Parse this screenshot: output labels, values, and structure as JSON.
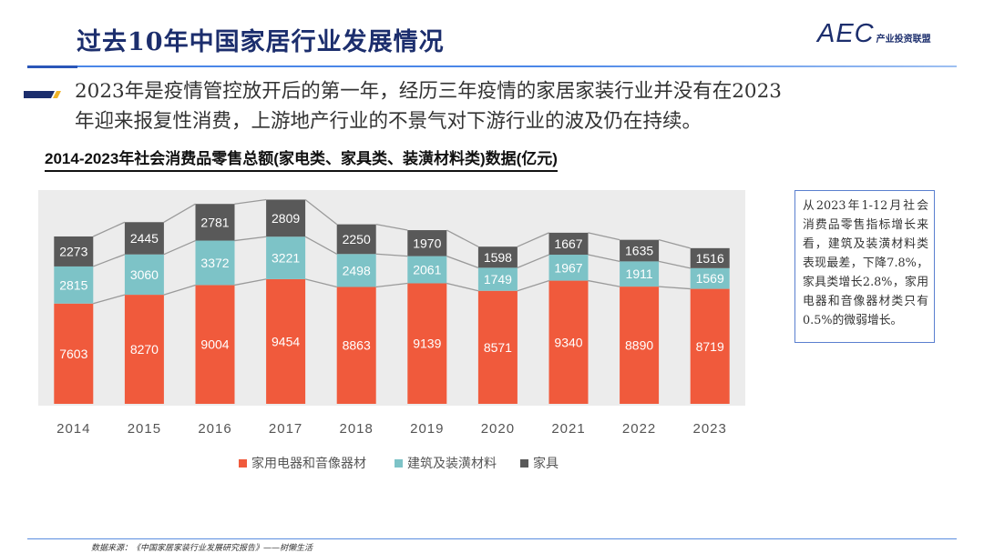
{
  "header": {
    "title": "过去10年中国家居行业发展情况",
    "logo_mark": "AEC",
    "logo_text": "产业投资联盟"
  },
  "intro": {
    "line1": "2023年是疫情管控放开后的第一年，经历三年疫情的家居家装行业并没有在2023",
    "line2": "年迎来报复性消费，上游地产行业的不景气对下游行业的波及仍在持续。"
  },
  "note": "从2023年1-12月社会消费品零售指标增长来看，建筑及装潢材料类表现最差，下降7.8%，家具类增长2.8%，家用电器和音像器材类只有0.5%的微弱增长。",
  "footer": "数据来源：《中国家居家装行业发展研究报告》——树懒生活",
  "colors": {
    "appliance": "#f05a3c",
    "building": "#7dc3c7",
    "furniture": "#595959",
    "title": "#1c2e6d",
    "accent": "#4a86e8"
  },
  "chart_data": {
    "type": "bar",
    "stacked": true,
    "title": "2014-2023年社会消费品零售总额(家电类、家具类、装潢材料类)数据(亿元)",
    "categories": [
      "2014",
      "2015",
      "2016",
      "2017",
      "2018",
      "2019",
      "2020",
      "2021",
      "2022",
      "2023"
    ],
    "series": [
      {
        "name": "家用电器和音像器材",
        "values": [
          7603,
          8270,
          9004,
          9454,
          8863,
          9139,
          8571,
          9340,
          8890,
          8719
        ]
      },
      {
        "name": "建筑及装潢材料",
        "values": [
          2815,
          3060,
          3372,
          3221,
          2498,
          2061,
          1749,
          1967,
          1911,
          1569
        ]
      },
      {
        "name": "家具",
        "values": [
          2273,
          2445,
          2781,
          2809,
          2250,
          1970,
          1598,
          1667,
          1635,
          1516
        ]
      }
    ],
    "legend_position": "bottom",
    "grid": false,
    "connector_lines": true
  }
}
